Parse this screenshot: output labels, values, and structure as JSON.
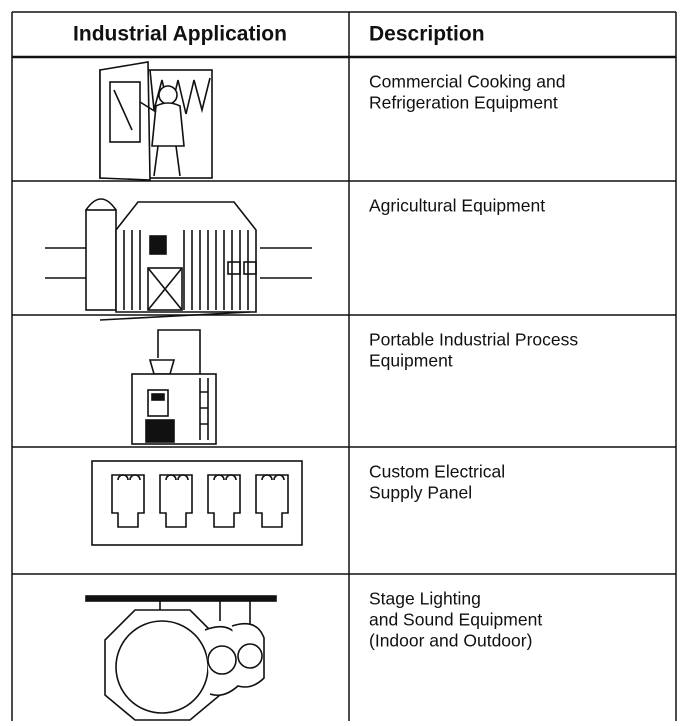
{
  "table": {
    "header": [
      "Industrial Application",
      "Description"
    ],
    "rows": [
      {
        "description": [
          "Commercial Cooking and",
          "Refrigeration Equipment"
        ]
      },
      {
        "description": [
          "Agricultural Equipment"
        ]
      },
      {
        "description": [
          "Portable Industrial Process",
          "Equipment"
        ]
      },
      {
        "description": [
          "Custom Electrical",
          "Supply Panel"
        ]
      },
      {
        "description": [
          "Stage Lighting",
          "and Sound Equipment",
          "(Indoor and Outdoor)"
        ]
      }
    ]
  }
}
